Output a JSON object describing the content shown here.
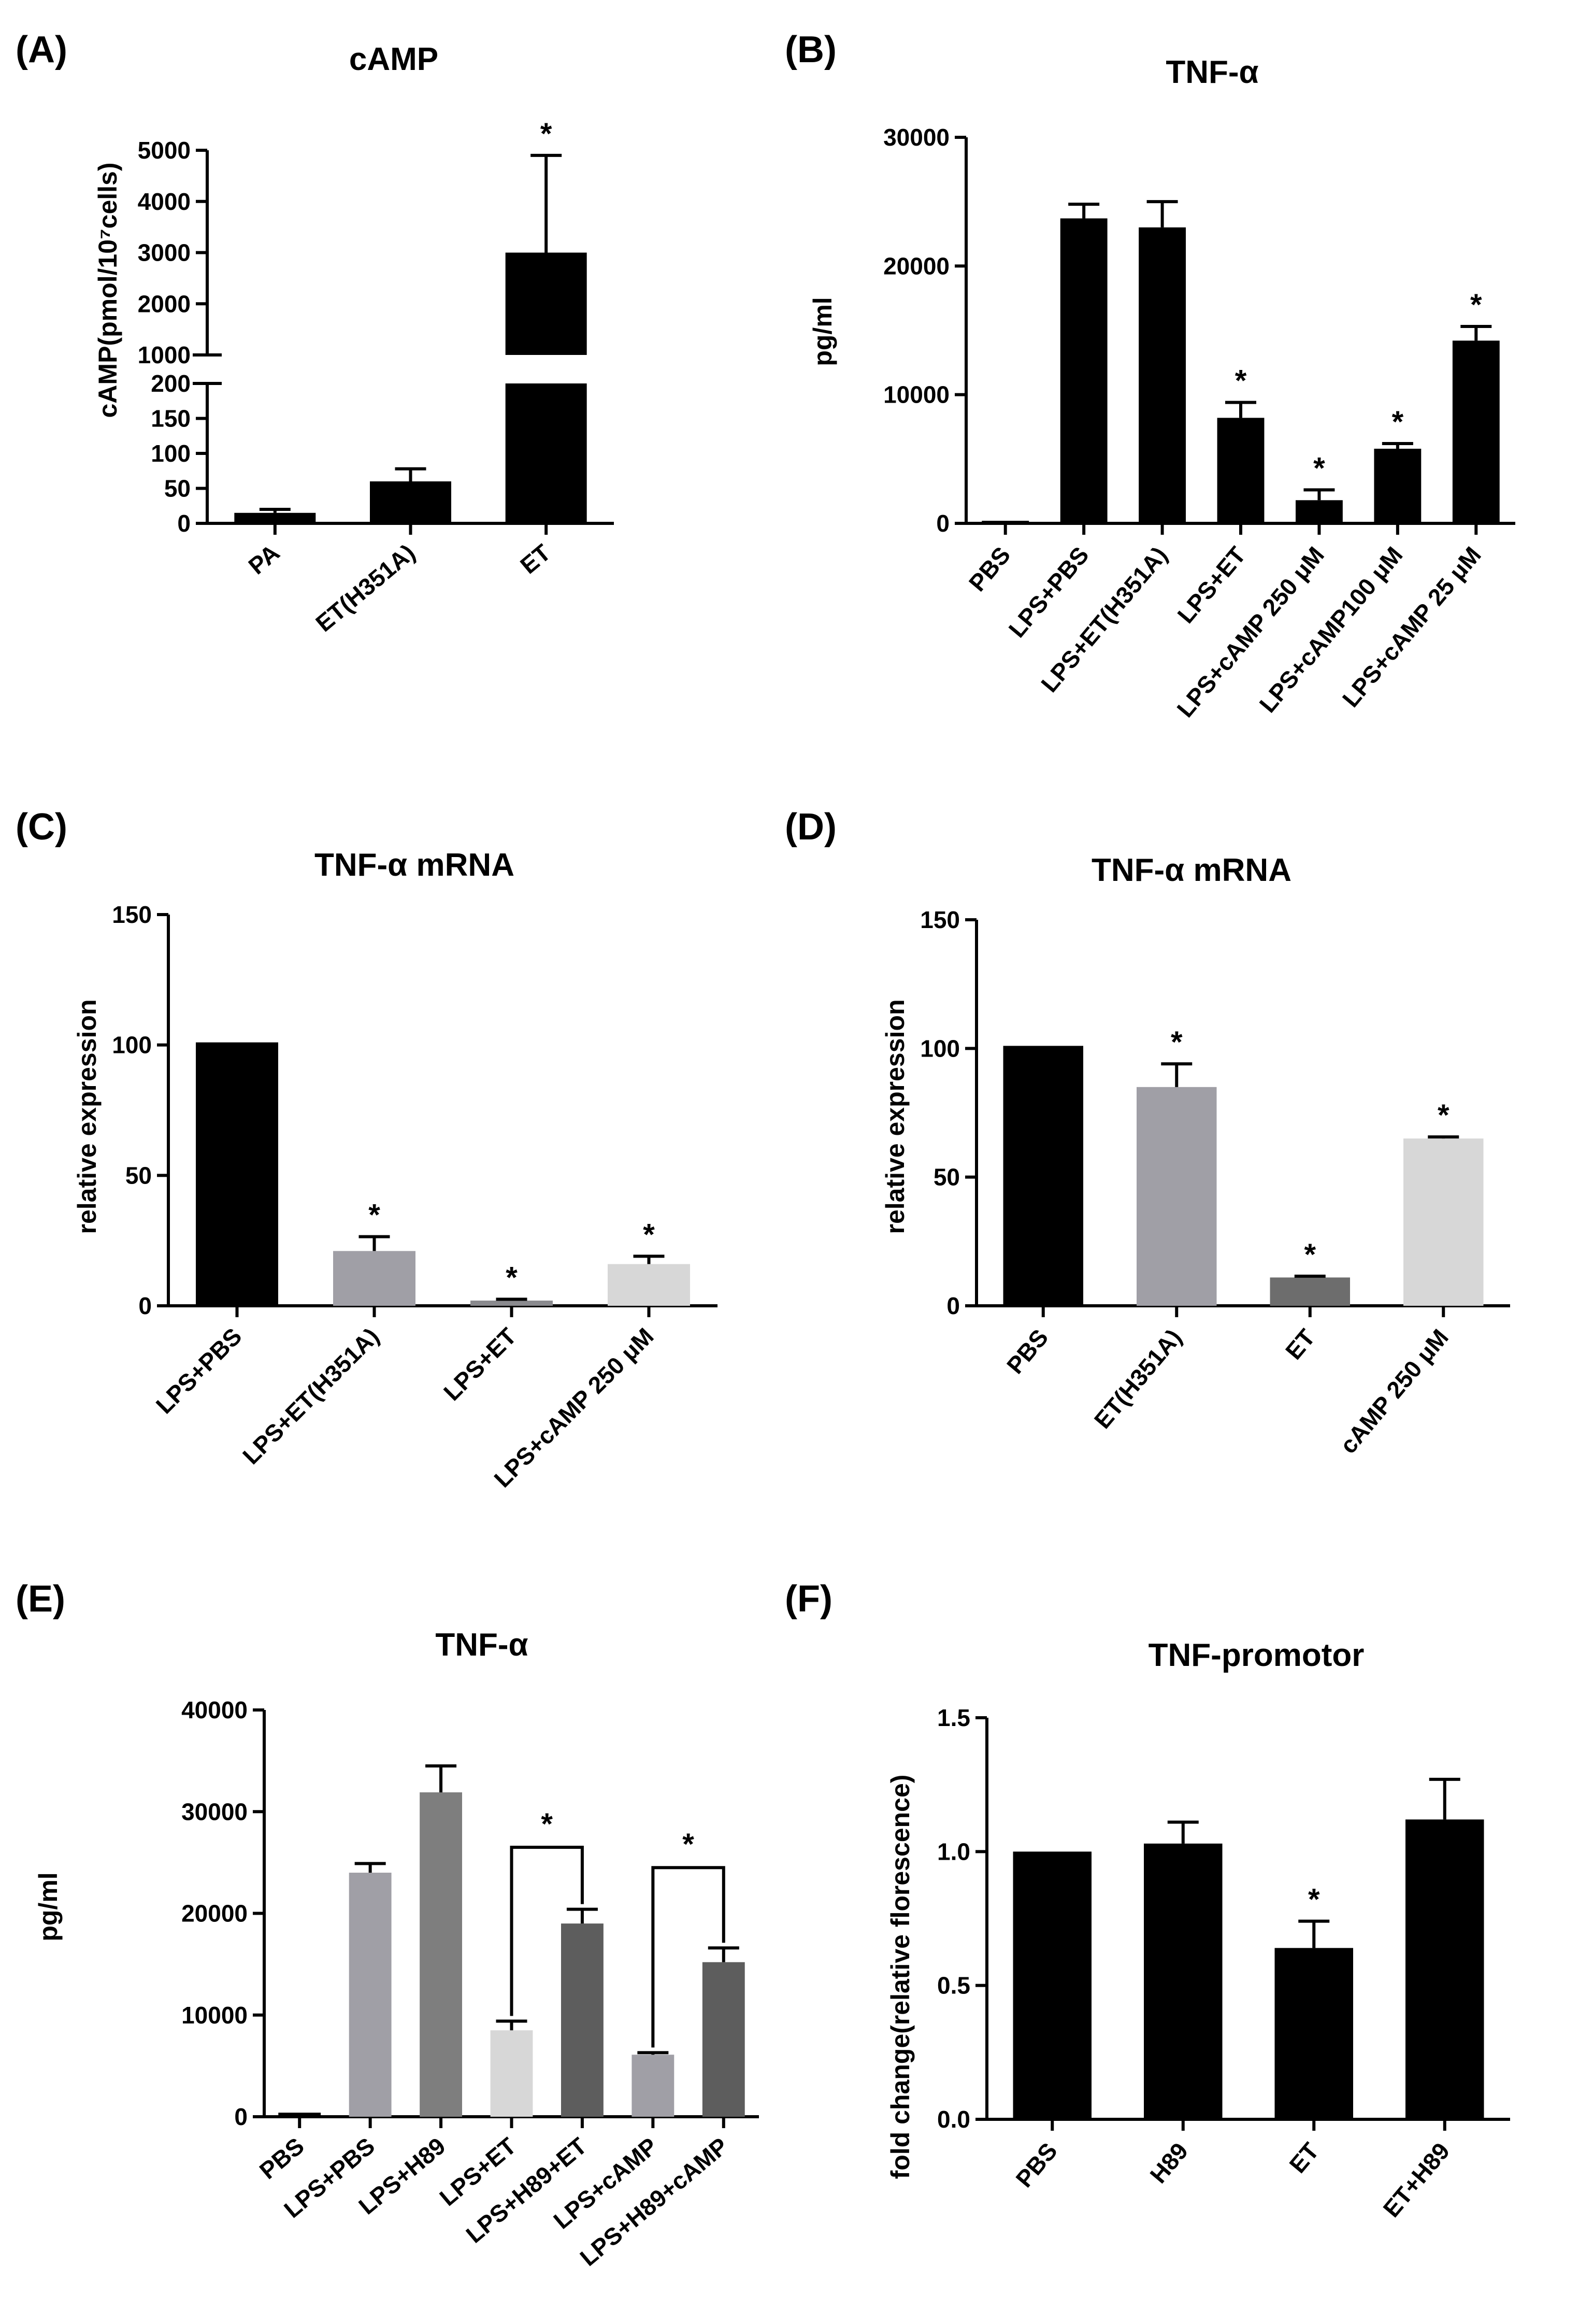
{
  "figure": {
    "background": "#ffffff"
  },
  "chart_data": [
    {
      "id": "A",
      "panel_label": "(A)",
      "type": "bar",
      "title": "cAMP",
      "ylabel": "cAMP(pmol/10⁷cells)",
      "xlabel": "",
      "categories": [
        "PA",
        "ET(H351A)",
        "ET"
      ],
      "values": [
        15,
        60,
        3000
      ],
      "errors": [
        5,
        18,
        1900
      ],
      "significant": [
        false,
        false,
        true
      ],
      "colors": [
        "#000000",
        "#000000",
        "#000000"
      ],
      "broken_axis": {
        "lower_range": [
          0,
          200
        ],
        "lower_ticks": [
          0,
          50,
          100,
          150,
          200
        ],
        "upper_range": [
          1000,
          5000
        ],
        "upper_ticks": [
          1000,
          2000,
          3000,
          4000,
          5000
        ]
      },
      "tick_labels": [
        "0",
        "50",
        "100",
        "150",
        "200",
        "1000",
        "2000",
        "3000",
        "4000",
        "5000"
      ],
      "sig_label": "*"
    },
    {
      "id": "B",
      "panel_label": "(B)",
      "type": "bar",
      "title": "TNF-α",
      "ylabel": "pg/ml",
      "xlabel": "",
      "categories": [
        "PBS",
        "LPS+PBS",
        "LPS+ET(H351A)",
        "LPS+ET",
        "LPS+cAMP 250 μM",
        "LPS+cAMP100 μM",
        "LPS+cAMP 25 μM"
      ],
      "values": [
        200,
        23700,
        23000,
        8200,
        1800,
        5800,
        14200
      ],
      "errors": [
        0,
        1100,
        2000,
        1200,
        800,
        400,
        1100
      ],
      "significant": [
        false,
        false,
        false,
        true,
        true,
        true,
        true
      ],
      "colors": [
        "#000000",
        "#000000",
        "#000000",
        "#000000",
        "#000000",
        "#000000",
        "#000000"
      ],
      "ylim": [
        0,
        30000
      ],
      "yticks": [
        0,
        10000,
        20000,
        30000
      ],
      "tick_labels": [
        "0",
        "10000",
        "20000",
        "30000"
      ],
      "sig_label": "*"
    },
    {
      "id": "C",
      "panel_label": "(C)",
      "type": "bar",
      "title": "TNF-α mRNA",
      "ylabel": "relative expression",
      "xlabel": "",
      "categories": [
        "LPS+PBS",
        "LPS+ET(H351A)",
        "LPS+ET",
        "LPS+cAMP 250 μM"
      ],
      "values": [
        101,
        21,
        2,
        16
      ],
      "errors": [
        0,
        5.5,
        0.5,
        3
      ],
      "significant": [
        false,
        true,
        true,
        true
      ],
      "colors": [
        "#000000",
        "#a09fa6",
        "#8a8a8e",
        "#d7d7d7"
      ],
      "ylim": [
        0,
        150
      ],
      "yticks": [
        0,
        50,
        100,
        150
      ],
      "tick_labels": [
        "0",
        "50",
        "100",
        "150"
      ],
      "sig_label": "*"
    },
    {
      "id": "D",
      "panel_label": "(D)",
      "type": "bar",
      "title": "TNF-α mRNA",
      "ylabel": "relative expression",
      "xlabel": "",
      "categories": [
        "PBS",
        "ET(H351A)",
        "ET",
        "cAMP 250 μM"
      ],
      "values": [
        101,
        85,
        11,
        65
      ],
      "errors": [
        0,
        9,
        0.5,
        0.6
      ],
      "significant": [
        false,
        true,
        true,
        true
      ],
      "colors": [
        "#000000",
        "#a09fa6",
        "#6d6d6d",
        "#d7d7d7"
      ],
      "ylim": [
        0,
        150
      ],
      "yticks": [
        0,
        50,
        100,
        150
      ],
      "tick_labels": [
        "0",
        "50",
        "100",
        "150"
      ],
      "sig_label": "*"
    },
    {
      "id": "E",
      "panel_label": "(E)",
      "type": "bar",
      "title": "TNF-α",
      "ylabel": "pg/ml",
      "xlabel": "",
      "categories": [
        "PBS",
        "LPS+PBS",
        "LPS+H89",
        "LPS+ET",
        "LPS+H89+ET",
        "LPS+cAMP",
        "LPS+H89+cAMP"
      ],
      "values": [
        400,
        24000,
        31900,
        8500,
        19000,
        6100,
        15200
      ],
      "errors": [
        0,
        900,
        2600,
        900,
        1400,
        200,
        1400
      ],
      "significant": [
        false,
        false,
        false,
        false,
        false,
        false,
        false
      ],
      "colors": [
        "#000000",
        "#a09fa6",
        "#7e7e7e",
        "#d7d7d7",
        "#5d5d5d",
        "#a09fa6",
        "#5d5d5d"
      ],
      "ylim": [
        0,
        40000
      ],
      "yticks": [
        0,
        10000,
        20000,
        30000,
        40000
      ],
      "tick_labels": [
        "0",
        "10000",
        "20000",
        "30000",
        "40000"
      ],
      "brackets": [
        {
          "from": 3,
          "to": 4,
          "y": 26500,
          "label": "*"
        },
        {
          "from": 5,
          "to": 6,
          "y": 24500,
          "label": "*"
        }
      ]
    },
    {
      "id": "F",
      "panel_label": "(F)",
      "type": "bar",
      "title": "TNF-promotor",
      "ylabel": "fold change(relative florescence)",
      "xlabel": "",
      "categories": [
        "PBS",
        "H89",
        "ET",
        "ET+H89"
      ],
      "values": [
        1.0,
        1.03,
        0.64,
        1.12
      ],
      "errors": [
        0,
        0.08,
        0.1,
        0.15
      ],
      "significant": [
        false,
        false,
        true,
        false
      ],
      "colors": [
        "#000000",
        "#000000",
        "#000000",
        "#000000"
      ],
      "ylim": [
        0,
        1.5
      ],
      "yticks": [
        0,
        0.5,
        1.0,
        1.5
      ],
      "tick_labels": [
        "0.0",
        "0.5",
        "1.0",
        "1.5"
      ],
      "sig_label": "*"
    }
  ]
}
